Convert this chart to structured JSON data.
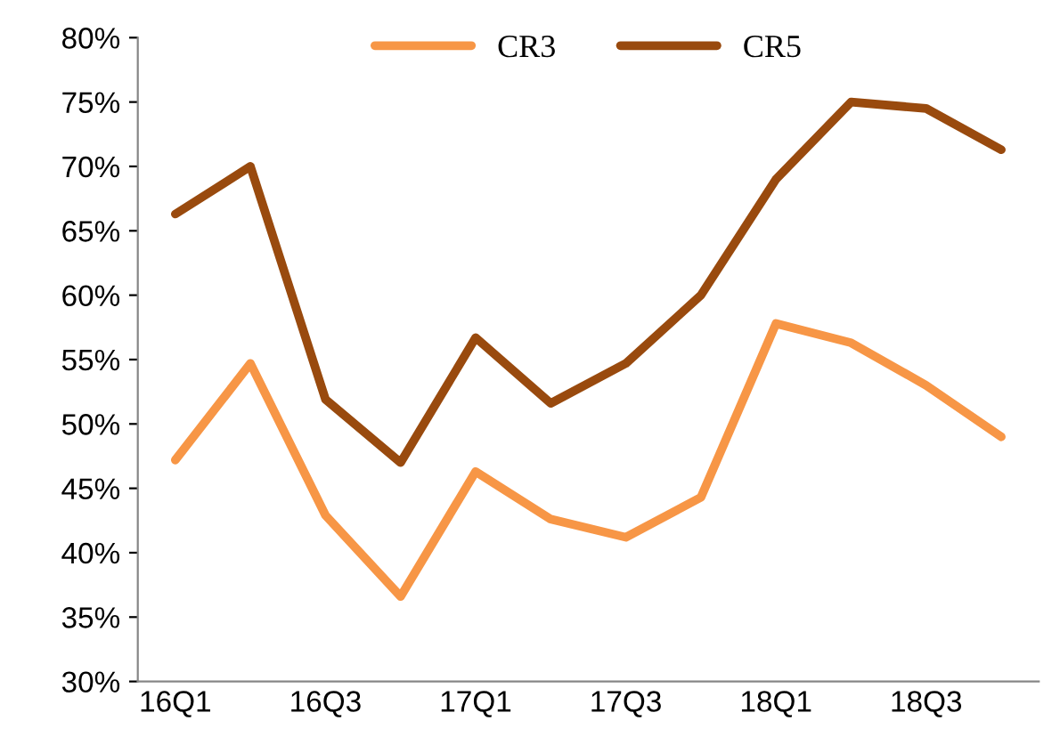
{
  "chart_data": {
    "type": "line",
    "categories": [
      "16Q1",
      null,
      "16Q3",
      null,
      "17Q1",
      null,
      "17Q3",
      null,
      "18Q1",
      null,
      "18Q3",
      null
    ],
    "series": [
      {
        "name": "CR3",
        "color": "#f79646",
        "values": [
          47.2,
          54.7,
          42.9,
          36.6,
          46.3,
          42.6,
          41.2,
          44.3,
          57.8,
          56.3,
          53,
          49
        ]
      },
      {
        "name": "CR5",
        "color": "#994a0e",
        "values": [
          66.3,
          70,
          51.9,
          47,
          56.7,
          51.6,
          54.7,
          60,
          69,
          75,
          74.5,
          71.3
        ]
      }
    ],
    "ylim": [
      30,
      80
    ],
    "yticks": [
      {
        "value": 30,
        "label": "30%"
      },
      {
        "value": 35,
        "label": "35%"
      },
      {
        "value": 40,
        "label": "40%"
      },
      {
        "value": 45,
        "label": "45%"
      },
      {
        "value": 50,
        "label": "50%"
      },
      {
        "value": 55,
        "label": "55%"
      },
      {
        "value": 60,
        "label": "60%"
      },
      {
        "value": 65,
        "label": "65%"
      },
      {
        "value": 70,
        "label": "70%"
      },
      {
        "value": 75,
        "label": "75%"
      },
      {
        "value": 80,
        "label": "80%"
      }
    ],
    "grid": false,
    "legend": "top",
    "marker": "none",
    "line_style": "solid"
  }
}
